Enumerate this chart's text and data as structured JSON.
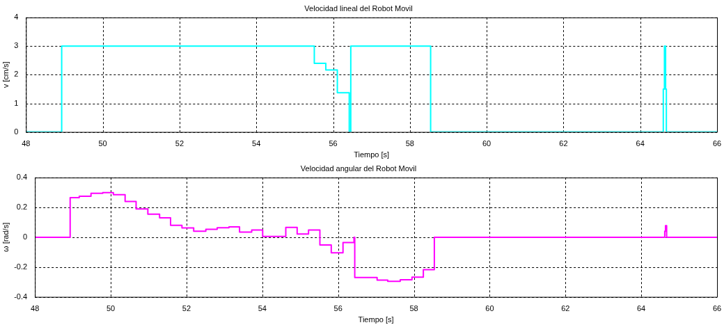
{
  "chart_data": [
    {
      "type": "step",
      "title": "Velocidad lineal del Robot Movil",
      "xlabel": "Tiempo [s]",
      "ylabel": "v [cm/s]",
      "color": "#00ffff",
      "grid": true,
      "legend": false,
      "marker": "none",
      "xlim": [
        48,
        66
      ],
      "xticks": [
        48,
        50,
        52,
        54,
        56,
        58,
        60,
        62,
        64,
        66
      ],
      "ylim": [
        0,
        4
      ],
      "yticks": [
        0,
        1,
        2,
        3,
        4
      ],
      "x": [
        48,
        48.93,
        55.51,
        55.81,
        56.11,
        56.42,
        56.46,
        58.54,
        64.6,
        64.63,
        64.66,
        64.68,
        66
      ],
      "values": [
        0,
        3,
        2.4,
        2.17,
        1.37,
        0,
        3,
        0,
        1.5,
        3,
        1.5,
        0,
        0
      ]
    },
    {
      "type": "step",
      "title": "Velocidad angular del Robot Movil",
      "xlabel": "Tiempo [s]",
      "ylabel": "ω [rad/s]",
      "color": "#ff00ff",
      "grid": true,
      "legend": false,
      "marker": "none",
      "xlim": [
        48,
        66
      ],
      "xticks": [
        48,
        50,
        52,
        54,
        56,
        58,
        60,
        62,
        64,
        66
      ],
      "ylim": [
        -0.4,
        0.4
      ],
      "yticks": [
        -0.4,
        -0.2,
        0,
        0.2,
        0.4
      ],
      "x": [
        48,
        48.93,
        49.17,
        49.48,
        49.79,
        50.07,
        50.38,
        50.67,
        50.98,
        51.29,
        51.58,
        51.88,
        52.19,
        52.51,
        52.81,
        53.12,
        53.4,
        53.72,
        54.01,
        54.62,
        54.92,
        55.22,
        55.52,
        55.82,
        56.13,
        56.42,
        56.44,
        57.03,
        57.31,
        57.64,
        57.95,
        58.25,
        58.54,
        64.62,
        64.64,
        64.67,
        66
      ],
      "values": [
        0,
        0.265,
        0.275,
        0.295,
        0.3,
        0.285,
        0.24,
        0.19,
        0.155,
        0.13,
        0.08,
        0.063,
        0.04,
        0.053,
        0.064,
        0.07,
        0.035,
        0.048,
        0.005,
        0.066,
        0.022,
        0.049,
        -0.052,
        -0.104,
        -0.036,
        0,
        -0.27,
        -0.288,
        -0.296,
        -0.285,
        -0.268,
        -0.217,
        0,
        0.04,
        0.078,
        0,
        0
      ]
    }
  ]
}
